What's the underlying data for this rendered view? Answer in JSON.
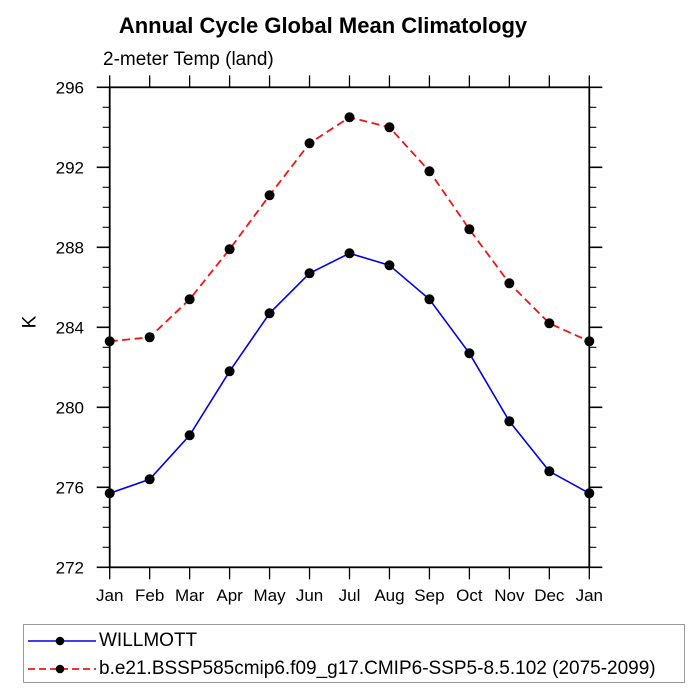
{
  "chart_data": {
    "type": "line",
    "title": "Annual Cycle Global Mean Climatology",
    "subtitle": "2-meter Temp (land)",
    "ylabel": "K",
    "xlabel": "",
    "categories": [
      "Jan",
      "Feb",
      "Mar",
      "Apr",
      "May",
      "Jun",
      "Jul",
      "Aug",
      "Sep",
      "Oct",
      "Nov",
      "Dec",
      "Jan"
    ],
    "series": [
      {
        "name": "WILLMOTT",
        "color": "#0000ee",
        "line_style": "solid",
        "marker": "filled-circle",
        "marker_color": "#000000",
        "values": [
          275.7,
          276.4,
          278.6,
          281.8,
          284.7,
          286.7,
          287.7,
          287.1,
          285.4,
          282.7,
          279.3,
          276.8,
          275.7
        ]
      },
      {
        "name": "b.e21.BSSP585cmip6.f09_g17.CMIP6-SSP5-8.5.102 (2075-2099)",
        "color": "#f21414",
        "line_style": "dashed",
        "marker": "filled-circle",
        "marker_color": "#000000",
        "values": [
          283.3,
          283.5,
          285.4,
          287.9,
          290.6,
          293.2,
          294.5,
          294.0,
          291.8,
          288.9,
          286.2,
          284.2,
          283.3
        ]
      }
    ],
    "ylim": [
      272,
      296
    ],
    "yticks_major": [
      272,
      276,
      280,
      284,
      288,
      292,
      296
    ],
    "ytick_minor_step": 1,
    "grid": false,
    "axis_color": "#000000",
    "legend_position": "bottom-left-box"
  }
}
